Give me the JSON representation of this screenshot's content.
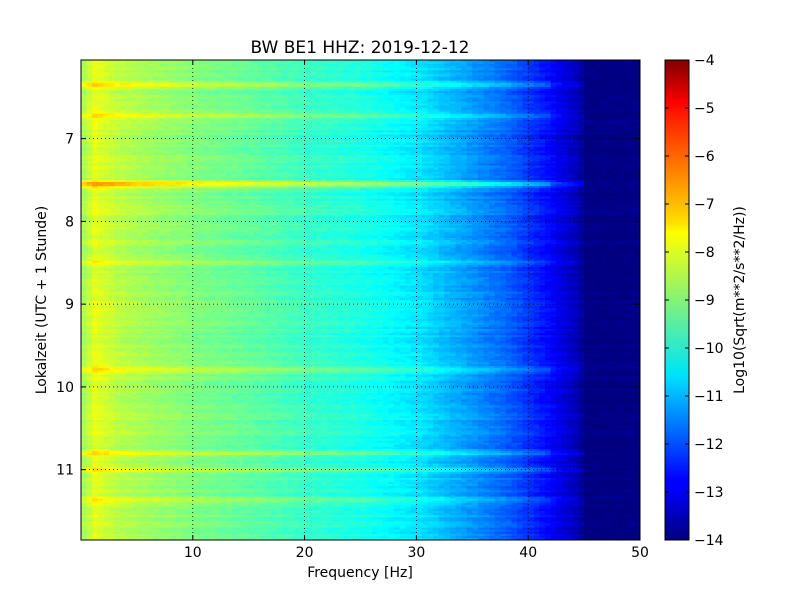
{
  "chart_data": {
    "type": "heatmap",
    "title": "BW BE1 HHZ: 2019-12-12",
    "xlabel": "Frequency [Hz]",
    "ylabel": "Lokalzeit (UTC + 1 Stunde)",
    "xlim": [
      0,
      50
    ],
    "ylim": [
      6.05,
      11.85
    ],
    "y_inverted": true,
    "x_ticks": [
      10,
      20,
      30,
      40,
      50
    ],
    "x_tick_labels": [
      "10",
      "20",
      "30",
      "40",
      "50"
    ],
    "y_ticks": [
      7,
      8,
      9,
      10,
      11
    ],
    "y_tick_labels": [
      "7",
      "8",
      "9",
      "10",
      "11"
    ],
    "grid": true,
    "colormap": "jet",
    "colorbar": {
      "label": "Log10(Sqrt(m**2/s**2/Hz))",
      "min": -14,
      "max": -4,
      "ticks": [
        -4,
        -5,
        -6,
        -7,
        -8,
        -9,
        -10,
        -11,
        -12,
        -13,
        -14
      ],
      "tick_labels": [
        "−4",
        "−5",
        "−6",
        "−7",
        "−8",
        "−9",
        "−10",
        "−11",
        "−12",
        "−13",
        "−14"
      ]
    },
    "spectrum_profile": {
      "frequency_hz": [
        0,
        1,
        3,
        5,
        10,
        15,
        20,
        25,
        30,
        35,
        38,
        40,
        42,
        44,
        45,
        50
      ],
      "level": [
        -8.6,
        -8.0,
        -8.4,
        -8.6,
        -9.0,
        -9.3,
        -9.7,
        -10.0,
        -10.5,
        -11.3,
        -11.8,
        -12.3,
        -12.8,
        -13.4,
        -14.0,
        -14.0
      ]
    },
    "bright_bands": [
      {
        "time": 6.33,
        "level_offset": 0.8
      },
      {
        "time": 6.72,
        "level_offset": 0.7
      },
      {
        "time": 7.55,
        "level_offset": 1.2
      },
      {
        "time": 8.5,
        "level_offset": 0.4
      },
      {
        "time": 9.78,
        "level_offset": 0.6
      },
      {
        "time": 10.78,
        "level_offset": 0.6
      },
      {
        "time": 11.0,
        "level_offset": 0.5
      },
      {
        "time": 11.37,
        "level_offset": 0.5
      }
    ]
  }
}
